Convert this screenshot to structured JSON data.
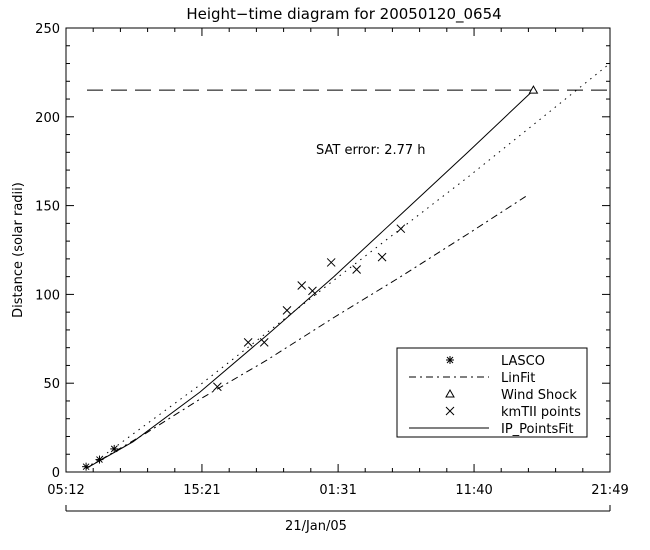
{
  "chart_data": {
    "type": "line",
    "title": "Height−time diagram for 20050120_0654",
    "ylabel": "Distance (solar radii)",
    "xlabel": "21/Jan/05",
    "xlim_hours": [
      0,
      40.6167
    ],
    "ylim": [
      0,
      250
    ],
    "x_ticks": [
      {
        "hours": 0,
        "label": "05:12"
      },
      {
        "hours": 10.15,
        "label": "15:21"
      },
      {
        "hours": 20.3167,
        "label": "01:31"
      },
      {
        "hours": 30.4667,
        "label": "11:40"
      },
      {
        "hours": 40.6167,
        "label": "21:49"
      }
    ],
    "y_ticks": [
      0,
      50,
      100,
      150,
      200,
      250
    ],
    "annotation": "SAT error:  2.77 h",
    "reference_line": {
      "y": 215,
      "style": "dashed"
    },
    "legend": {
      "position": "bottom-right",
      "entries": [
        "LASCO",
        "LinFit",
        "Wind Shock",
        "kmTII points",
        "IP_PointsFit"
      ]
    },
    "series": [
      {
        "name": "LASCO",
        "style": "asterisk",
        "points": [
          [
            1.5,
            3
          ],
          [
            2.5,
            7
          ],
          [
            3.6,
            13
          ]
        ]
      },
      {
        "name": "kmTII points",
        "style": "x",
        "points": [
          [
            11.3,
            48
          ],
          [
            13.6,
            73
          ],
          [
            14.8,
            73
          ],
          [
            16.5,
            91
          ],
          [
            17.6,
            105
          ],
          [
            18.4,
            102
          ],
          [
            19.8,
            118
          ],
          [
            21.7,
            114
          ],
          [
            23.6,
            121
          ],
          [
            25.0,
            137
          ]
        ]
      },
      {
        "name": "Wind Shock",
        "style": "triangle",
        "points": [
          [
            34.9,
            215
          ]
        ]
      },
      {
        "name": "LinFit",
        "style": "dash-dot",
        "points": [
          [
            1.5,
            2
          ],
          [
            6,
            22
          ],
          [
            10,
            41
          ],
          [
            15,
            63
          ],
          [
            20,
            87
          ],
          [
            25,
            110
          ],
          [
            30,
            134
          ],
          [
            34.5,
            156
          ]
        ]
      },
      {
        "name": "IP_PointsFit",
        "style": "solid",
        "points": [
          [
            1.5,
            2
          ],
          [
            5,
            17
          ],
          [
            10,
            45
          ],
          [
            15,
            77
          ],
          [
            20,
            110
          ],
          [
            25,
            145
          ],
          [
            30,
            180
          ],
          [
            34.9,
            215
          ]
        ]
      },
      {
        "name": "",
        "style": "dotted",
        "points": [
          [
            1.5,
            2
          ],
          [
            10,
            49
          ],
          [
            20,
            108
          ],
          [
            30,
            166
          ],
          [
            40.6,
            230
          ]
        ]
      }
    ]
  }
}
